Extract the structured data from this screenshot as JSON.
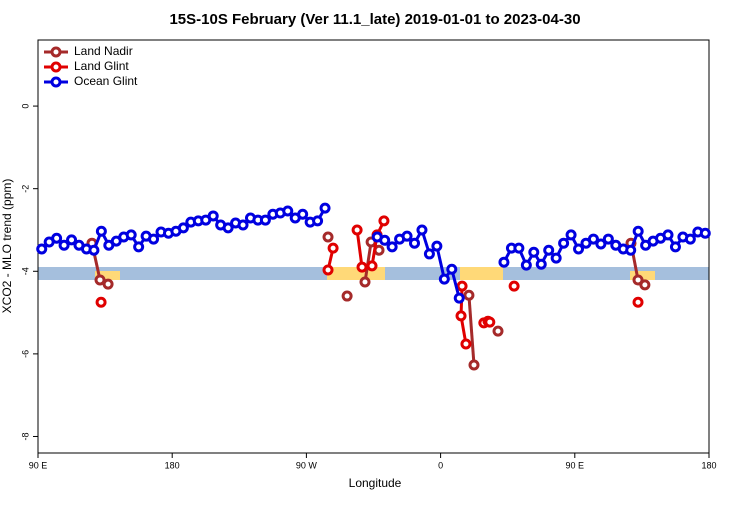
{
  "chart_data": {
    "type": "line",
    "title": "15S-10S February (Ver 11.1_late)   2019-01-01 to 2023-04-30",
    "x_label": "Longitude",
    "y_label": "XCO2 - MLO trend (ppm)",
    "xlim": [
      90,
      540
    ],
    "ylim": [
      -8.4,
      1.6
    ],
    "xticks": [
      {
        "value": 90,
        "label": "90 E"
      },
      {
        "value": 180,
        "label": "180"
      },
      {
        "value": 270,
        "label": "90 W"
      },
      {
        "value": 360,
        "label": "0"
      },
      {
        "value": 450,
        "label": "90 E"
      },
      {
        "value": 540,
        "label": "180"
      }
    ],
    "yticks": [
      0,
      -2,
      -4,
      -6,
      -8
    ],
    "legend": "top-left",
    "series": [
      {
        "name": "Land Nadir",
        "color": "#a52a2a",
        "x": [
          126.2,
          131.6,
          137,
          null,
          284.5,
          null,
          297.3,
          null,
          309.3,
          313.4,
          318.7,
          null,
          379,
          382.4,
          null,
          398.5,
          null,
          487.7,
          492.4,
          497
        ],
        "values": [
          -3.32,
          -4.21,
          -4.31,
          null,
          -3.17,
          null,
          -4.6,
          null,
          -4.26,
          -3.29,
          -3.49,
          null,
          -4.58,
          -6.27,
          null,
          -5.45,
          null,
          -3.32,
          -4.21,
          -4.33
        ]
      },
      {
        "name": "Land Glint",
        "color": "#e00000",
        "x": [
          132.3,
          null,
          284.5,
          287.9,
          null,
          304,
          307.3,
          314,
          317.4,
          322,
          null,
          374.4,
          373.7,
          377,
          null,
          389,
          391.8,
          393,
          null,
          409.3,
          null,
          492.4
        ],
        "values": [
          -4.75,
          null,
          -3.97,
          -3.44,
          null,
          -3.0,
          -3.9,
          -3.87,
          -3.12,
          -2.78,
          null,
          -4.36,
          -5.08,
          -5.76,
          null,
          -5.25,
          -5.21,
          -5.23,
          null,
          -4.36,
          null,
          -4.75
        ]
      },
      {
        "name": "Ocean Glint",
        "color": "#0000e0",
        "x": [
          92.5,
          97.5,
          102.5,
          107.5,
          112.5,
          117.5,
          122.5,
          127.5,
          132.5,
          137.5,
          142.5,
          147.5,
          152.5,
          157.5,
          162.5,
          167.5,
          172.5,
          177.5,
          182.5,
          187.5,
          192.5,
          197.5,
          202.5,
          207.5,
          212.5,
          217.5,
          222.5,
          227.5,
          232.5,
          237.5,
          242.5,
          247.5,
          252.5,
          257.5,
          262.5,
          267.5,
          272.5,
          277.5,
          282.5,
          null,
          317.5,
          322.5,
          327.5,
          332.5,
          337.5,
          342.5,
          347.5,
          352.5,
          357.5,
          362.5,
          367.5,
          372.5,
          null,
          402.5,
          407.5,
          412.5,
          417.5,
          422.5,
          427.5,
          432.5,
          437.5,
          442.5,
          447.5,
          452.5,
          457.5,
          462.5,
          467.5,
          472.5,
          477.5,
          482.5,
          487.5,
          492.5,
          497.5,
          502.5,
          507.5,
          512.5,
          517.5,
          522.5,
          527.5,
          532.5,
          537.5
        ],
        "values": [
          -3.46,
          -3.29,
          -3.2,
          -3.37,
          -3.24,
          -3.37,
          -3.46,
          -3.49,
          -3.03,
          -3.37,
          -3.27,
          -3.17,
          -3.12,
          -3.41,
          -3.15,
          -3.22,
          -3.05,
          -3.08,
          -3.03,
          -2.95,
          -2.81,
          -2.78,
          -2.76,
          -2.66,
          -2.88,
          -2.95,
          -2.83,
          -2.88,
          -2.71,
          -2.76,
          -2.76,
          -2.62,
          -2.59,
          -2.54,
          -2.71,
          -2.62,
          -2.81,
          -2.78,
          -2.47,
          null,
          -3.17,
          -3.25,
          -3.41,
          -3.22,
          -3.15,
          -3.32,
          -3.0,
          -3.58,
          -3.39,
          -4.19,
          -3.95,
          -4.65,
          null,
          -3.78,
          -3.44,
          -3.44,
          -3.85,
          -3.54,
          -3.83,
          -3.49,
          -3.68,
          -3.32,
          -3.12,
          -3.46,
          -3.32,
          -3.22,
          -3.34,
          -3.22,
          -3.37,
          -3.46,
          -3.49,
          -3.03,
          -3.37,
          -3.27,
          -3.2,
          -3.12,
          -3.41,
          -3.17,
          -3.22,
          -3.05,
          -3.08
        ]
      }
    ]
  }
}
